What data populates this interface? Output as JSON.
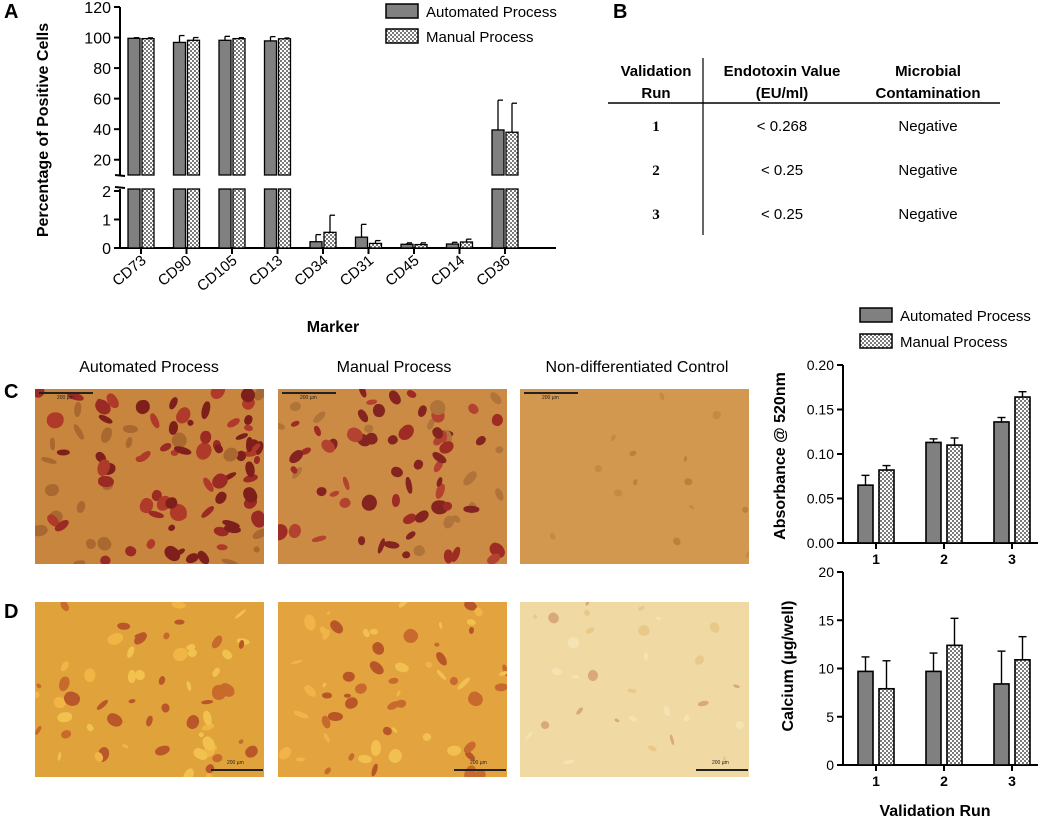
{
  "colors": {
    "automated": "#808080",
    "manual": "#ffffff",
    "axis": "#000000"
  },
  "panel_a": {
    "letter": "A",
    "legend": [
      "Automated Process",
      "Manual Process"
    ],
    "xlabel": "Marker",
    "ylabel": "Percentage of Positive Cells",
    "upper_ticks": [
      "20",
      "40",
      "60",
      "80",
      "100",
      "120"
    ],
    "lower_ticks": [
      "0",
      "1",
      "2"
    ]
  },
  "panel_b": {
    "letter": "B",
    "headers": [
      [
        "Validation",
        "Run"
      ],
      [
        "Endotoxin Value",
        "(EU/ml)"
      ],
      [
        "Microbial",
        "Contamination"
      ]
    ],
    "rows": [
      {
        "run": "1",
        "endotoxin": "< 0.268",
        "microbial": "Negative"
      },
      {
        "run": "2",
        "endotoxin": "< 0.25",
        "microbial": "Negative"
      },
      {
        "run": "3",
        "endotoxin": "< 0.25",
        "microbial": "Negative"
      }
    ]
  },
  "panel_c": {
    "letter": "C",
    "image_titles": [
      "Automated Process",
      "Manual Process",
      "Non-differentiated Control"
    ],
    "scale_label": "200 µm"
  },
  "panel_d": {
    "letter": "D",
    "scale_label": "200 µm"
  },
  "right_legend": [
    "Automated Process",
    "Manual Process"
  ],
  "right_xlabel": "Validation Run",
  "chart_data": [
    {
      "type": "bar",
      "categories": [
        "CD73",
        "CD90",
        "CD105",
        "CD13",
        "CD34",
        "CD31",
        "CD45",
        "CD14",
        "CD36"
      ],
      "xlabel": "Marker",
      "ylabel": "Percentage of Positive Cells",
      "axis_break": {
        "lower": [
          0,
          2
        ],
        "upper": [
          10,
          120
        ]
      },
      "legend_position": "top-right",
      "series": [
        {
          "name": "Automated Process",
          "values": [
            99.5,
            96.8,
            98.2,
            97.8,
            0.22,
            0.38,
            0.13,
            0.14,
            39.5
          ],
          "errors": [
            0.4,
            4.5,
            2.6,
            2.8,
            0.25,
            0.45,
            0.05,
            0.06,
            19.5
          ]
        },
        {
          "name": "Manual Process",
          "values": [
            99.3,
            98.2,
            99.3,
            99.2,
            0.55,
            0.16,
            0.12,
            0.21,
            38.0
          ],
          "errors": [
            0.5,
            1.8,
            0.6,
            0.5,
            0.6,
            0.1,
            0.06,
            0.1,
            19.0
          ]
        }
      ]
    },
    {
      "type": "bar",
      "categories": [
        "1",
        "2",
        "3"
      ],
      "ylabel": "Absorbance @ 520nm",
      "ylim": [
        0,
        0.2
      ],
      "yticks": [
        "0.00",
        "0.05",
        "0.10",
        "0.15",
        "0.20"
      ],
      "series": [
        {
          "name": "Automated Process",
          "values": [
            0.065,
            0.113,
            0.136
          ],
          "errors": [
            0.011,
            0.004,
            0.005
          ]
        },
        {
          "name": "Manual Process",
          "values": [
            0.082,
            0.11,
            0.164
          ],
          "errors": [
            0.005,
            0.008,
            0.006
          ]
        }
      ]
    },
    {
      "type": "bar",
      "categories": [
        "1",
        "2",
        "3"
      ],
      "xlabel": "Validation Run",
      "ylabel": "Calcium (µg/well)",
      "ylim": [
        0,
        20
      ],
      "yticks": [
        "0",
        "5",
        "10",
        "15",
        "20"
      ],
      "series": [
        {
          "name": "Automated Process",
          "values": [
            9.7,
            9.7,
            8.4
          ],
          "errors": [
            1.5,
            1.9,
            3.4
          ]
        },
        {
          "name": "Manual Process",
          "values": [
            7.9,
            12.4,
            10.9
          ],
          "errors": [
            2.9,
            2.8,
            2.4
          ]
        }
      ]
    }
  ]
}
